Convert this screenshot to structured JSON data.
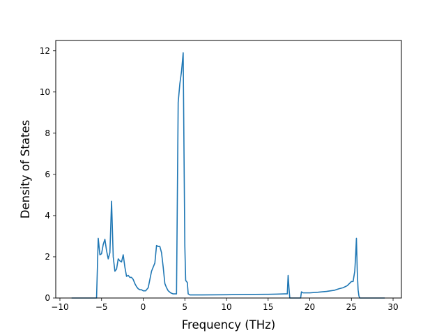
{
  "chart_data": {
    "type": "line",
    "title": "",
    "xlabel": "Frequency (THz)",
    "ylabel": "Density of States",
    "xlim": [
      -10.5,
      31.0
    ],
    "ylim": [
      0,
      12.5
    ],
    "xticks": [
      -10,
      -5,
      0,
      5,
      10,
      15,
      20,
      25,
      30
    ],
    "yticks": [
      0,
      2,
      4,
      6,
      8,
      10,
      12
    ],
    "grid": false,
    "legend": "none",
    "colors": {
      "line": "#1f77b4"
    },
    "series": [
      {
        "x": [
          -8.6,
          -5.6,
          -5.4,
          -5.2,
          -5.0,
          -4.8,
          -4.6,
          -4.4,
          -4.2,
          -4.0,
          -3.8,
          -3.6,
          -3.4,
          -3.2,
          -3.0,
          -2.8,
          -2.6,
          -2.4,
          -2.2,
          -2.0,
          -1.8,
          -1.6,
          -1.4,
          -1.2,
          -1.0,
          -0.8,
          -0.6,
          -0.4,
          -0.2,
          0.0,
          0.3,
          0.6,
          0.8,
          1.0,
          1.2,
          1.4,
          1.6,
          1.8,
          2.0,
          2.2,
          2.4,
          2.6,
          2.8,
          3.0,
          3.3,
          3.6,
          4.0,
          4.2,
          4.4,
          4.6,
          4.8,
          4.9,
          5.0,
          5.1,
          5.3,
          5.4,
          5.6,
          6.0,
          7.0,
          10.0,
          12.0,
          15.0,
          16.0,
          17.0,
          17.3,
          17.4,
          17.5,
          17.6,
          18.9,
          19.0,
          19.2,
          20.0,
          21.0,
          22.0,
          23.0,
          23.5,
          24.0,
          24.5,
          25.0,
          25.2,
          25.4,
          25.5,
          25.6,
          25.7,
          25.8,
          25.9,
          26.0,
          26.2,
          29.0
        ],
        "y": [
          0,
          0,
          2.9,
          2.1,
          2.15,
          2.6,
          2.85,
          2.3,
          1.9,
          2.2,
          4.7,
          2.0,
          1.3,
          1.4,
          1.9,
          1.8,
          1.75,
          2.1,
          1.5,
          1.05,
          1.1,
          1.0,
          1.0,
          0.9,
          0.7,
          0.55,
          0.45,
          0.4,
          0.4,
          0.35,
          0.35,
          0.5,
          0.9,
          1.3,
          1.5,
          1.7,
          2.55,
          2.5,
          2.5,
          2.2,
          1.5,
          0.7,
          0.5,
          0.35,
          0.25,
          0.2,
          0.2,
          9.5,
          10.4,
          11.0,
          11.9,
          7.0,
          2.5,
          0.85,
          0.75,
          0.2,
          0.15,
          0.15,
          0.15,
          0.16,
          0.17,
          0.18,
          0.19,
          0.2,
          0.2,
          1.1,
          0.5,
          0.0,
          0.0,
          0.3,
          0.25,
          0.25,
          0.28,
          0.32,
          0.38,
          0.45,
          0.5,
          0.6,
          0.8,
          0.8,
          1.3,
          2.0,
          2.9,
          1.3,
          0.4,
          0.1,
          0.0,
          0.0,
          0.0
        ]
      }
    ]
  }
}
